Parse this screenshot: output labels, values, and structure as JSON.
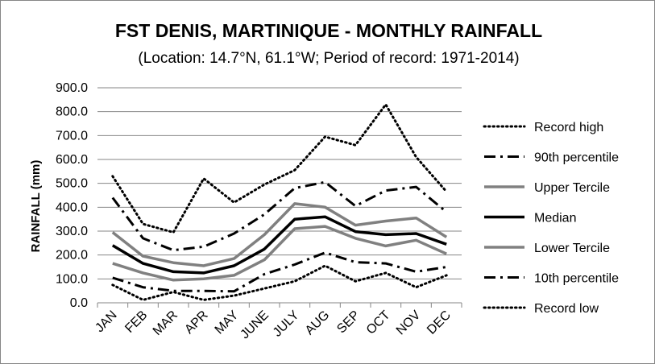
{
  "chart_data": {
    "type": "line",
    "title": "FST DENIS, MARTINIQUE - MONTHLY RAINFALL",
    "subtitle": "(Location: 14.7°N, 61.1°W; Period of record: 1971-2014)",
    "ylabel": "RAINFALL (mm)",
    "xlabel": "",
    "ylim": [
      0,
      900
    ],
    "y_ticks": [
      "0.0",
      "100.0",
      "200.0",
      "300.0",
      "400.0",
      "500.0",
      "600.0",
      "700.0",
      "800.0",
      "900.0"
    ],
    "y_tick_values": [
      0,
      100,
      200,
      300,
      400,
      500,
      600,
      700,
      800,
      900
    ],
    "grid": true,
    "legend_position": "right",
    "categories": [
      "JAN",
      "FEB",
      "MAR",
      "APR",
      "MAY",
      "JUNE",
      "JULY",
      "AUG",
      "SEP",
      "OCT",
      "NOV",
      "DEC"
    ],
    "series": [
      {
        "name": "Record high",
        "style": "dotted",
        "color": "#000000",
        "values": [
          530,
          330,
          295,
          520,
          420,
          495,
          555,
          695,
          660,
          830,
          610,
          465
        ]
      },
      {
        "name": "90th percentile",
        "style": "dashdot",
        "color": "#000000",
        "values": [
          440,
          270,
          220,
          235,
          290,
          370,
          480,
          505,
          405,
          470,
          485,
          380
        ]
      },
      {
        "name": "Upper Tercile",
        "style": "solid",
        "color": "#808080",
        "values": [
          295,
          195,
          168,
          155,
          185,
          285,
          415,
          400,
          325,
          342,
          355,
          275
        ]
      },
      {
        "name": "Median",
        "style": "solid",
        "color": "#000000",
        "values": [
          240,
          165,
          130,
          125,
          155,
          225,
          350,
          360,
          298,
          285,
          290,
          245
        ]
      },
      {
        "name": "Lower Tercile",
        "style": "solid",
        "color": "#808080",
        "values": [
          165,
          125,
          95,
          100,
          115,
          180,
          310,
          320,
          270,
          238,
          262,
          205
        ]
      },
      {
        "name": "10th percentile",
        "style": "dashdot",
        "color": "#000000",
        "values": [
          105,
          65,
          50,
          50,
          48,
          120,
          160,
          210,
          170,
          165,
          130,
          150
        ]
      },
      {
        "name": "Record low",
        "style": "dotted",
        "color": "#000000",
        "values": [
          75,
          12,
          45,
          12,
          30,
          60,
          90,
          155,
          90,
          125,
          65,
          115
        ]
      }
    ]
  }
}
